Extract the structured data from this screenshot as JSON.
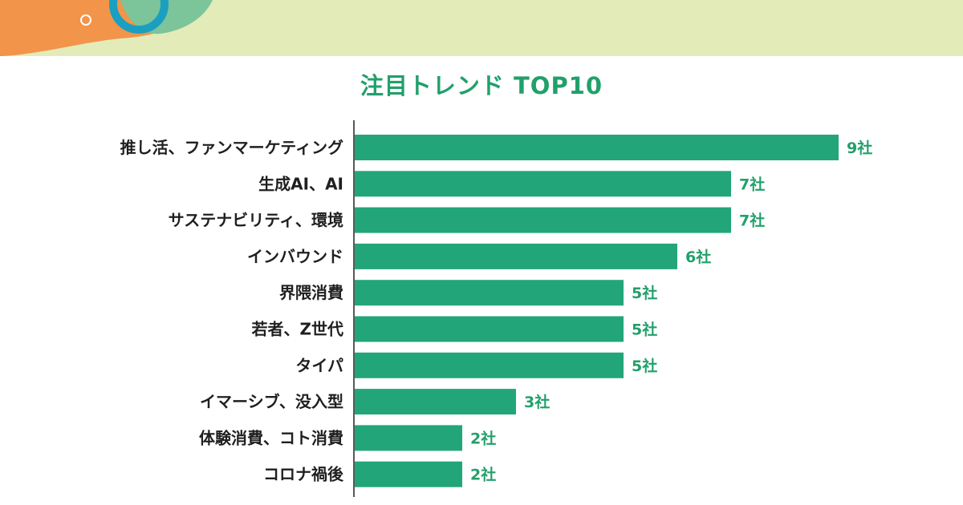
{
  "colors": {
    "bar": "#22a679",
    "title": "#22a06b",
    "value_label": "#22a06b",
    "category_label": "#1f1f1f",
    "header_band": "#e3ebb8",
    "deco_orange": "#f2944a",
    "deco_teal": "#1a9fc0",
    "deco_green": "#7cc49a"
  },
  "icons": [
    "decorative-circles"
  ],
  "chart_data": {
    "type": "bar",
    "orientation": "horizontal",
    "title": "注目トレンド TOP10",
    "categories": [
      "推し活、ファンマーケティング",
      "生成AI、AI",
      "サステナビリティ、環境",
      "インバウンド",
      "界隈消費",
      "若者、Z世代",
      "タイパ",
      "イマーシブ、没入型",
      "体験消費、コト消費",
      "コロナ禍後"
    ],
    "values": [
      9,
      7,
      7,
      6,
      5,
      5,
      5,
      3,
      2,
      2
    ],
    "value_labels": [
      "9社",
      "7社",
      "7社",
      "6社",
      "5社",
      "5社",
      "5社",
      "3社",
      "2社",
      "2社"
    ],
    "unit": "社",
    "xlim": [
      0,
      9
    ],
    "grid": false,
    "legend": "none"
  }
}
